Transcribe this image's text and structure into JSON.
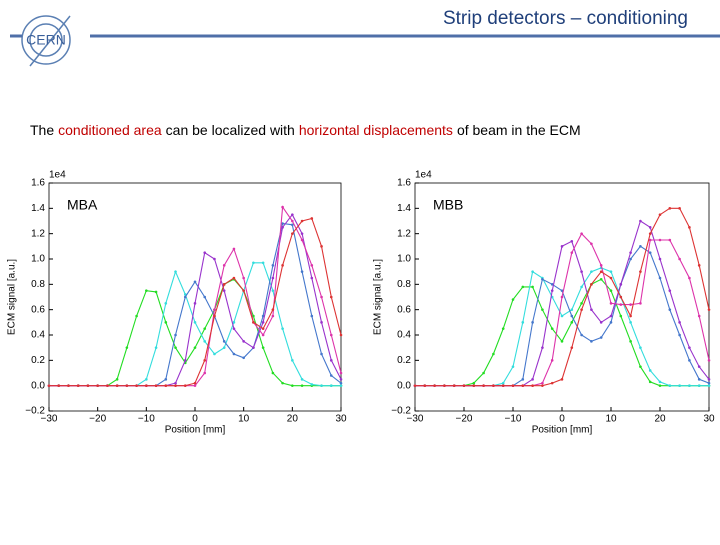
{
  "logo_text": "CERN",
  "title": "Strip detectors – conditioning",
  "subtitle": [
    {
      "text": "The",
      "color": "#000000"
    },
    {
      "text": "conditioned area",
      "color": "#c00000"
    },
    {
      "text": "can be localized with",
      "color": "#000000"
    },
    {
      "text": "horizontal displacements",
      "color": "#c00000"
    },
    {
      "text": "of  beam in the ECM",
      "color": "#000000"
    }
  ],
  "chart_data": [
    {
      "type": "line",
      "annotation": "MBA",
      "x_label": "Position [mm]",
      "y_label": "ECM signal [a.u.]",
      "offset_label": "1e4",
      "xlim": [
        -30,
        30
      ],
      "ylim": [
        -0.2,
        1.6
      ],
      "xticks": [
        {
          "value": -30,
          "label": "−30"
        },
        {
          "value": -20,
          "label": "−20"
        },
        {
          "value": -10,
          "label": "−10"
        },
        0,
        10,
        20,
        30
      ],
      "yticks": [
        {
          "value": -0.2,
          "label": "−0.2"
        },
        {
          "value": 0,
          "label": "0.0"
        },
        0.2,
        0.4,
        0.6,
        0.8,
        {
          "value": 1,
          "label": "1.0"
        },
        1.2,
        1.4,
        1.6
      ],
      "x": [
        -30,
        -28,
        -26,
        -24,
        -22,
        -20,
        -18,
        -16,
        -14,
        -12,
        -10,
        -8,
        -6,
        -4,
        -2,
        0,
        2,
        4,
        6,
        8,
        10,
        12,
        14,
        16,
        18,
        20,
        22,
        24,
        26,
        28,
        30
      ],
      "series": [
        {
          "color": "#22dd22",
          "values": [
            0,
            0,
            0,
            0,
            0,
            0,
            0,
            0.05,
            0.3,
            0.55,
            0.75,
            0.74,
            0.5,
            0.3,
            0.18,
            0.3,
            0.45,
            0.6,
            0.8,
            0.84,
            0.75,
            0.55,
            0.3,
            0.1,
            0.02,
            0,
            0,
            0,
            0,
            0,
            0
          ]
        },
        {
          "color": "#33dddd",
          "values": [
            0,
            0,
            0,
            0,
            0,
            0,
            0,
            0,
            0,
            0,
            0.05,
            0.3,
            0.65,
            0.9,
            0.72,
            0.5,
            0.35,
            0.25,
            0.3,
            0.5,
            0.75,
            0.97,
            0.97,
            0.75,
            0.45,
            0.2,
            0.05,
            0.01,
            0,
            0,
            0
          ]
        },
        {
          "color": "#4477cc",
          "values": [
            0,
            0,
            0,
            0,
            0,
            0,
            0,
            0,
            0,
            0,
            0,
            0,
            0.05,
            0.4,
            0.7,
            0.82,
            0.7,
            0.55,
            0.35,
            0.25,
            0.22,
            0.3,
            0.55,
            0.95,
            1.28,
            1.27,
            0.9,
            0.55,
            0.25,
            0.08,
            0.02
          ]
        },
        {
          "color": "#9933cc",
          "values": [
            0,
            0,
            0,
            0,
            0,
            0,
            0,
            0,
            0,
            0,
            0,
            0,
            0,
            0.02,
            0.2,
            0.65,
            1.05,
            1.0,
            0.75,
            0.45,
            0.35,
            0.3,
            0.5,
            0.85,
            1.25,
            1.35,
            1.2,
            0.85,
            0.5,
            0.2,
            0.05
          ]
        },
        {
          "color": "#dd33aa",
          "values": [
            0,
            0,
            0,
            0,
            0,
            0,
            0,
            0,
            0,
            0,
            0,
            0,
            0,
            0,
            0,
            0,
            0.1,
            0.6,
            0.95,
            1.08,
            0.85,
            0.5,
            0.4,
            0.55,
            1.41,
            1.3,
            1.15,
            0.95,
            0.7,
            0.4,
            0.1
          ]
        },
        {
          "color": "#dd3333",
          "values": [
            0,
            0,
            0,
            0,
            0,
            0,
            0,
            0,
            0,
            0,
            0,
            0,
            0,
            0,
            0,
            0.02,
            0.2,
            0.55,
            0.8,
            0.85,
            0.75,
            0.5,
            0.45,
            0.6,
            0.95,
            1.2,
            1.3,
            1.32,
            1.1,
            0.7,
            0.4
          ]
        }
      ]
    },
    {
      "type": "line",
      "annotation": "MBB",
      "x_label": "Position [mm]",
      "y_label": "ECM signal [a.u.]",
      "offset_label": "1e4",
      "xlim": [
        -30,
        30
      ],
      "ylim": [
        -0.2,
        1.6
      ],
      "xticks": [
        {
          "value": -30,
          "label": "−30"
        },
        {
          "value": -20,
          "label": "−20"
        },
        {
          "value": -10,
          "label": "−10"
        },
        0,
        10,
        20,
        30
      ],
      "yticks": [
        {
          "value": -0.2,
          "label": "−0.2"
        },
        {
          "value": 0,
          "label": "0.0"
        },
        0.2,
        0.4,
        0.6,
        0.8,
        {
          "value": 1,
          "label": "1.0"
        },
        1.2,
        1.4,
        1.6
      ],
      "x": [
        -30,
        -28,
        -26,
        -24,
        -22,
        -20,
        -18,
        -16,
        -14,
        -12,
        -10,
        -8,
        -6,
        -4,
        -2,
        0,
        2,
        4,
        6,
        8,
        10,
        12,
        14,
        16,
        18,
        20,
        22,
        24,
        26,
        28,
        30
      ],
      "series": [
        {
          "color": "#22dd22",
          "values": [
            0,
            0,
            0,
            0,
            0,
            0,
            0.02,
            0.1,
            0.25,
            0.45,
            0.68,
            0.78,
            0.78,
            0.6,
            0.45,
            0.35,
            0.5,
            0.65,
            0.8,
            0.84,
            0.75,
            0.55,
            0.35,
            0.15,
            0.03,
            0,
            0,
            0,
            0,
            0,
            0
          ]
        },
        {
          "color": "#33dddd",
          "values": [
            0,
            0,
            0,
            0,
            0,
            0,
            0,
            0,
            0,
            0.02,
            0.15,
            0.5,
            0.9,
            0.85,
            0.7,
            0.55,
            0.6,
            0.78,
            0.9,
            0.93,
            0.9,
            0.7,
            0.5,
            0.3,
            0.12,
            0.03,
            0,
            0,
            0,
            0,
            0
          ]
        },
        {
          "color": "#4477cc",
          "values": [
            0,
            0,
            0,
            0,
            0,
            0,
            0,
            0,
            0,
            0,
            0,
            0.05,
            0.5,
            0.84,
            0.8,
            0.75,
            0.55,
            0.4,
            0.35,
            0.38,
            0.5,
            0.8,
            1.0,
            1.1,
            1.05,
            0.85,
            0.6,
            0.4,
            0.2,
            0.05,
            0.02
          ]
        },
        {
          "color": "#9933cc",
          "values": [
            0,
            0,
            0,
            0,
            0,
            0,
            0,
            0,
            0,
            0,
            0,
            0,
            0.05,
            0.3,
            0.75,
            1.1,
            1.14,
            0.9,
            0.6,
            0.5,
            0.55,
            0.8,
            1.05,
            1.3,
            1.25,
            1.0,
            0.75,
            0.5,
            0.3,
            0.15,
            0.05
          ]
        },
        {
          "color": "#dd33aa",
          "values": [
            0,
            0,
            0,
            0,
            0,
            0,
            0,
            0,
            0,
            0,
            0,
            0,
            0,
            0.02,
            0.2,
            0.7,
            1.05,
            1.2,
            1.12,
            0.95,
            0.65,
            0.64,
            0.64,
            0.65,
            1.15,
            1.15,
            1.15,
            1.0,
            0.85,
            0.55,
            0.2
          ]
        },
        {
          "color": "#dd3333",
          "values": [
            0,
            0,
            0,
            0,
            0,
            0,
            0,
            0,
            0,
            0,
            0,
            0,
            0,
            0,
            0.02,
            0.05,
            0.3,
            0.6,
            0.8,
            0.9,
            0.85,
            0.7,
            0.55,
            0.9,
            1.2,
            1.35,
            1.4,
            1.4,
            1.25,
            0.95,
            0.6
          ]
        }
      ]
    }
  ]
}
